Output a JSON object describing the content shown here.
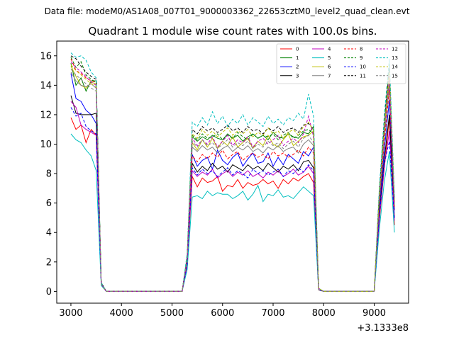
{
  "chart_data": {
    "type": "line",
    "suptitle": "Data file: modeM0/AS1A08_007T01_9000003362_22653cztM0_level2_quad_clean.evt",
    "title": "Quadrant 1 module wise count rates with 100.0s bins.",
    "x_offset_label": "+3.1333e8",
    "xlim": [
      2720,
      9680
    ],
    "ylim": [
      -0.8,
      17.0
    ],
    "x_ticks": [
      3000,
      4000,
      5000,
      6000,
      7000,
      8000,
      9000
    ],
    "y_ticks": [
      0,
      2,
      4,
      6,
      8,
      10,
      12,
      14,
      16
    ],
    "x_tick_labels": [
      "3000",
      "4000",
      "5000",
      "6000",
      "7000",
      "8000",
      "9000"
    ],
    "y_tick_labels": [
      "0",
      "2",
      "4",
      "6",
      "8",
      "10",
      "12",
      "14",
      "16"
    ],
    "legend_position": "top-right",
    "legend_columns": 4,
    "x": [
      3000,
      3100,
      3200,
      3300,
      3400,
      3500,
      3600,
      3700,
      3800,
      3900,
      4000,
      4100,
      4200,
      4300,
      4400,
      4500,
      4600,
      4700,
      4800,
      4900,
      5000,
      5100,
      5200,
      5300,
      5400,
      5500,
      5600,
      5700,
      5800,
      5900,
      6000,
      6100,
      6200,
      6300,
      6400,
      6500,
      6600,
      6700,
      6800,
      6900,
      7000,
      7100,
      7200,
      7300,
      7400,
      7500,
      7600,
      7700,
      7800,
      7900,
      8000,
      8100,
      8200,
      8300,
      8400,
      8500,
      8600,
      8700,
      8800,
      8900,
      9000,
      9100,
      9200,
      9300,
      9400
    ],
    "series": [
      {
        "name": "0",
        "color": "#ff0000",
        "dashed": false,
        "values": [
          11.8,
          11.0,
          11.3,
          10.1,
          11.0,
          10.6,
          0.5,
          0.0,
          0.0,
          0.0,
          0.0,
          0.0,
          0.0,
          0.0,
          0.0,
          0.0,
          0.0,
          0.0,
          0.0,
          0.0,
          0.0,
          0.0,
          0.0,
          1.7,
          7.8,
          7.1,
          7.7,
          7.4,
          7.5,
          7.8,
          6.8,
          7.2,
          7.1,
          7.6,
          7.0,
          7.4,
          7.2,
          7.3,
          7.6,
          7.3,
          7.5,
          7.0,
          7.6,
          7.3,
          7.7,
          7.5,
          7.8,
          8.0,
          7.4,
          0.1,
          0.0,
          0.0,
          0.0,
          0.0,
          0.0,
          0.0,
          0.0,
          0.0,
          0.0,
          0.0,
          0.0,
          4.8,
          8.4,
          11.8,
          4.5
        ]
      },
      {
        "name": "1",
        "color": "#008000",
        "dashed": false,
        "values": [
          15.5,
          14.0,
          14.5,
          13.6,
          14.3,
          14.3,
          0.5,
          0.0,
          0.0,
          0.0,
          0.0,
          0.0,
          0.0,
          0.0,
          0.0,
          0.0,
          0.0,
          0.0,
          0.0,
          0.0,
          0.0,
          0.0,
          0.0,
          2.3,
          10.5,
          10.2,
          10.5,
          10.3,
          10.6,
          10.4,
          10.3,
          10.7,
          10.4,
          10.6,
          10.2,
          10.5,
          10.7,
          10.4,
          10.6,
          10.3,
          10.8,
          10.5,
          10.4,
          10.7,
          10.5,
          10.4,
          10.8,
          10.7,
          11.2,
          0.2,
          0.0,
          0.0,
          0.0,
          0.0,
          0.0,
          0.0,
          0.0,
          0.0,
          0.0,
          0.0,
          0.0,
          6.5,
          11.0,
          14.3,
          6.0
        ]
      },
      {
        "name": "2",
        "color": "#0000ff",
        "dashed": false,
        "values": [
          14.8,
          13.1,
          12.9,
          12.3,
          12.0,
          11.4,
          0.5,
          0.0,
          0.0,
          0.0,
          0.0,
          0.0,
          0.0,
          0.0,
          0.0,
          0.0,
          0.0,
          0.0,
          0.0,
          0.0,
          0.0,
          0.0,
          0.0,
          2.0,
          9.3,
          8.5,
          8.9,
          9.1,
          8.3,
          9.6,
          8.9,
          8.6,
          9.1,
          9.4,
          8.5,
          9.0,
          9.4,
          8.7,
          8.8,
          9.4,
          8.5,
          9.1,
          8.6,
          9.3,
          9.0,
          8.7,
          9.5,
          9.2,
          9.8,
          0.1,
          0.0,
          0.0,
          0.0,
          0.0,
          0.0,
          0.0,
          0.0,
          0.0,
          0.0,
          0.0,
          0.0,
          5.8,
          9.6,
          13.0,
          5.5
        ]
      },
      {
        "name": "3",
        "color": "#000000",
        "dashed": false,
        "values": [
          13.3,
          12.1,
          12.0,
          12.0,
          12.0,
          12.1,
          0.5,
          0.0,
          0.0,
          0.0,
          0.0,
          0.0,
          0.0,
          0.0,
          0.0,
          0.0,
          0.0,
          0.0,
          0.0,
          0.0,
          0.0,
          0.0,
          0.0,
          1.9,
          8.7,
          8.1,
          8.5,
          8.2,
          8.7,
          8.3,
          8.5,
          8.1,
          8.6,
          8.4,
          8.2,
          8.6,
          8.3,
          8.5,
          8.2,
          8.7,
          8.4,
          8.1,
          8.5,
          8.3,
          8.6,
          8.2,
          8.8,
          8.9,
          8.4,
          0.1,
          0.0,
          0.0,
          0.0,
          0.0,
          0.0,
          0.0,
          0.0,
          0.0,
          0.0,
          0.0,
          0.0,
          5.3,
          9.0,
          12.0,
          5.0
        ]
      },
      {
        "name": "4",
        "color": "#bf00bf",
        "dashed": false,
        "values": [
          12.9,
          12.5,
          11.3,
          11.0,
          10.8,
          10.6,
          0.5,
          0.0,
          0.0,
          0.0,
          0.0,
          0.0,
          0.0,
          0.0,
          0.0,
          0.0,
          0.0,
          0.0,
          0.0,
          0.0,
          0.0,
          0.0,
          0.0,
          1.8,
          8.2,
          7.8,
          8.1,
          7.9,
          8.3,
          7.7,
          8.0,
          8.2,
          7.8,
          8.1,
          7.9,
          8.2,
          7.8,
          8.0,
          7.7,
          8.1,
          7.9,
          8.2,
          7.8,
          8.0,
          8.3,
          7.9,
          8.1,
          8.5,
          8.0,
          0.1,
          0.0,
          0.0,
          0.0,
          0.0,
          0.0,
          0.0,
          0.0,
          0.0,
          0.0,
          0.0,
          0.0,
          5.0,
          8.5,
          10.9,
          4.8
        ]
      },
      {
        "name": "5",
        "color": "#00bfbf",
        "dashed": false,
        "values": [
          10.7,
          10.3,
          10.1,
          9.6,
          9.2,
          8.2,
          0.4,
          0.0,
          0.0,
          0.0,
          0.0,
          0.0,
          0.0,
          0.0,
          0.0,
          0.0,
          0.0,
          0.0,
          0.0,
          0.0,
          0.0,
          0.0,
          0.0,
          1.5,
          6.4,
          6.5,
          6.3,
          6.8,
          6.5,
          6.7,
          6.6,
          6.6,
          6.3,
          6.5,
          6.8,
          6.2,
          6.6,
          7.2,
          6.1,
          6.6,
          6.5,
          6.9,
          6.4,
          6.5,
          6.3,
          6.7,
          7.1,
          6.8,
          6.5,
          0.1,
          0.0,
          0.0,
          0.0,
          0.0,
          0.0,
          0.0,
          0.0,
          0.0,
          0.0,
          0.0,
          0.0,
          4.2,
          7.5,
          9.5,
          4.0
        ]
      },
      {
        "name": "6",
        "color": "#bfbf00",
        "dashed": false,
        "values": [
          15.3,
          14.6,
          14.0,
          13.8,
          14.2,
          14.1,
          0.5,
          0.0,
          0.0,
          0.0,
          0.0,
          0.0,
          0.0,
          0.0,
          0.0,
          0.0,
          0.0,
          0.0,
          0.0,
          0.0,
          0.0,
          0.0,
          0.0,
          2.2,
          10.1,
          9.6,
          10.3,
          9.8,
          10.4,
          9.7,
          10.2,
          9.9,
          10.5,
          9.8,
          10.1,
          10.4,
          9.7,
          10.2,
          9.9,
          10.6,
          10.0,
          9.8,
          10.3,
          10.7,
          9.9,
          10.2,
          10.5,
          10.6,
          10.9,
          0.2,
          0.0,
          0.0,
          0.0,
          0.0,
          0.0,
          0.0,
          0.0,
          0.0,
          0.0,
          0.0,
          0.0,
          6.4,
          10.8,
          14.5,
          5.9
        ]
      },
      {
        "name": "7",
        "color": "#808080",
        "dashed": false,
        "values": [
          14.9,
          14.3,
          14.0,
          13.9,
          14.1,
          13.8,
          0.5,
          0.0,
          0.0,
          0.0,
          0.0,
          0.0,
          0.0,
          0.0,
          0.0,
          0.0,
          0.0,
          0.0,
          0.0,
          0.0,
          0.0,
          0.0,
          0.0,
          2.1,
          9.8,
          9.5,
          9.9,
          9.6,
          9.8,
          9.4,
          9.7,
          9.9,
          9.5,
          9.8,
          9.6,
          9.9,
          9.5,
          9.7,
          9.4,
          9.8,
          9.6,
          9.9,
          9.5,
          9.7,
          9.8,
          9.4,
          10.0,
          10.3,
          9.9,
          0.1,
          0.0,
          0.0,
          0.0,
          0.0,
          0.0,
          0.0,
          0.0,
          0.0,
          0.0,
          0.0,
          0.0,
          6.2,
          10.5,
          14.0,
          5.7
        ]
      },
      {
        "name": "8",
        "color": "#ff0000",
        "dashed": true,
        "values": [
          15.8,
          15.0,
          14.8,
          14.5,
          14.3,
          14.2,
          0.5,
          0.0,
          0.0,
          0.0,
          0.0,
          0.0,
          0.0,
          0.0,
          0.0,
          0.0,
          0.0,
          0.0,
          0.0,
          0.0,
          0.0,
          0.0,
          0.0,
          2.0,
          9.2,
          8.8,
          9.3,
          9.0,
          9.4,
          9.1,
          9.6,
          9.0,
          9.3,
          9.5,
          8.9,
          9.2,
          9.4,
          9.1,
          9.3,
          9.0,
          9.5,
          9.2,
          9.4,
          9.1,
          9.3,
          9.6,
          9.2,
          9.8,
          9.4,
          0.1,
          0.0,
          0.0,
          0.0,
          0.0,
          0.0,
          0.0,
          0.0,
          0.0,
          0.0,
          0.0,
          0.0,
          6.0,
          10.2,
          13.7,
          5.6
        ]
      },
      {
        "name": "9",
        "color": "#008000",
        "dashed": true,
        "values": [
          15.9,
          15.2,
          15.6,
          14.7,
          14.4,
          14.2,
          0.6,
          0.0,
          0.0,
          0.0,
          0.0,
          0.0,
          0.0,
          0.0,
          0.0,
          0.0,
          0.0,
          0.0,
          0.0,
          0.0,
          0.0,
          0.0,
          0.0,
          2.3,
          10.6,
          10.3,
          10.7,
          10.4,
          10.5,
          10.7,
          10.3,
          10.6,
          10.4,
          10.8,
          10.5,
          10.3,
          10.7,
          10.4,
          10.6,
          10.5,
          10.7,
          10.3,
          10.6,
          10.8,
          10.4,
          10.6,
          10.9,
          11.0,
          10.7,
          0.2,
          0.0,
          0.0,
          0.0,
          0.0,
          0.0,
          0.0,
          0.0,
          0.0,
          0.0,
          0.0,
          0.0,
          6.6,
          11.3,
          15.5,
          6.1
        ]
      },
      {
        "name": "10",
        "color": "#0000ff",
        "dashed": true,
        "values": [
          12.5,
          11.9,
          12.1,
          11.2,
          10.9,
          10.7,
          0.5,
          0.0,
          0.0,
          0.0,
          0.0,
          0.0,
          0.0,
          0.0,
          0.0,
          0.0,
          0.0,
          0.0,
          0.0,
          0.0,
          0.0,
          0.0,
          0.0,
          1.8,
          8.4,
          7.9,
          8.3,
          8.0,
          8.2,
          7.8,
          8.1,
          8.4,
          7.9,
          8.2,
          8.0,
          7.7,
          8.3,
          8.0,
          8.2,
          7.9,
          8.1,
          8.3,
          7.8,
          8.2,
          8.0,
          8.4,
          8.1,
          8.6,
          8.2,
          0.1,
          0.0,
          0.0,
          0.0,
          0.0,
          0.0,
          0.0,
          0.0,
          0.0,
          0.0,
          0.0,
          0.0,
          5.1,
          8.7,
          10.2,
          4.9
        ]
      },
      {
        "name": "11",
        "color": "#000000",
        "dashed": true,
        "values": [
          16.0,
          15.8,
          15.3,
          14.9,
          14.6,
          14.4,
          0.6,
          0.0,
          0.0,
          0.0,
          0.0,
          0.0,
          0.0,
          0.0,
          0.0,
          0.0,
          0.0,
          0.0,
          0.0,
          0.0,
          0.0,
          0.0,
          0.0,
          2.4,
          11.0,
          10.7,
          11.2,
          10.9,
          11.1,
          10.8,
          11.0,
          11.3,
          10.9,
          11.1,
          10.8,
          11.2,
          10.9,
          11.0,
          10.7,
          11.1,
          10.9,
          11.2,
          10.8,
          11.0,
          11.1,
          10.8,
          11.3,
          11.4,
          11.0,
          0.2,
          0.0,
          0.0,
          0.0,
          0.0,
          0.0,
          0.0,
          0.0,
          0.0,
          0.0,
          0.0,
          0.0,
          6.8,
          11.6,
          15.2,
          6.3
        ]
      },
      {
        "name": "12",
        "color": "#bf00bf",
        "dashed": true,
        "values": [
          15.6,
          15.2,
          14.9,
          14.6,
          14.2,
          14.0,
          0.5,
          0.0,
          0.0,
          0.0,
          0.0,
          0.0,
          0.0,
          0.0,
          0.0,
          0.0,
          0.0,
          0.0,
          0.0,
          0.0,
          0.0,
          0.0,
          0.0,
          2.2,
          10.4,
          9.9,
          10.3,
          10.0,
          10.5,
          9.8,
          10.2,
          10.6,
          9.9,
          10.3,
          10.1,
          10.5,
          9.8,
          10.2,
          10.4,
          10.0,
          10.3,
          10.6,
          9.9,
          10.2,
          10.4,
          10.1,
          10.7,
          11.9,
          10.5,
          0.2,
          0.0,
          0.0,
          0.0,
          0.0,
          0.0,
          0.0,
          0.0,
          0.0,
          0.0,
          0.0,
          0.0,
          6.3,
          10.9,
          14.6,
          5.9
        ]
      },
      {
        "name": "13",
        "color": "#00bfbf",
        "dashed": true,
        "values": [
          16.2,
          15.9,
          16.0,
          15.7,
          14.9,
          14.5,
          0.6,
          0.0,
          0.0,
          0.0,
          0.0,
          0.0,
          0.0,
          0.0,
          0.0,
          0.0,
          0.0,
          0.0,
          0.0,
          0.0,
          0.0,
          0.0,
          0.0,
          2.6,
          11.5,
          11.2,
          11.8,
          11.3,
          12.2,
          11.4,
          11.9,
          11.2,
          11.7,
          11.4,
          12.0,
          11.3,
          11.8,
          11.5,
          11.2,
          11.9,
          11.4,
          11.7,
          11.3,
          11.8,
          11.6,
          12.1,
          11.7,
          13.4,
          11.9,
          0.2,
          0.0,
          0.0,
          0.0,
          0.0,
          0.0,
          0.0,
          0.0,
          0.0,
          0.0,
          0.0,
          0.0,
          7.0,
          12.0,
          15.8,
          6.4
        ]
      },
      {
        "name": "14",
        "color": "#bfbf00",
        "dashed": true,
        "values": [
          15.4,
          15.0,
          14.7,
          14.4,
          14.1,
          13.9,
          0.5,
          0.0,
          0.0,
          0.0,
          0.0,
          0.0,
          0.0,
          0.0,
          0.0,
          0.0,
          0.0,
          0.0,
          0.0,
          0.0,
          0.0,
          0.0,
          0.0,
          2.2,
          10.7,
          10.4,
          11.0,
          10.6,
          10.9,
          10.5,
          10.8,
          11.1,
          10.6,
          10.9,
          10.7,
          11.0,
          10.5,
          10.8,
          10.6,
          11.1,
          10.7,
          10.9,
          10.4,
          10.8,
          11.0,
          10.6,
          11.2,
          11.5,
          10.9,
          0.2,
          0.0,
          0.0,
          0.0,
          0.0,
          0.0,
          0.0,
          0.0,
          0.0,
          0.0,
          0.0,
          0.0,
          6.5,
          11.2,
          14.9,
          6.1
        ]
      },
      {
        "name": "15",
        "color": "#808080",
        "dashed": true,
        "values": [
          15.1,
          14.7,
          14.4,
          14.1,
          13.8,
          13.6,
          0.5,
          0.0,
          0.0,
          0.0,
          0.0,
          0.0,
          0.0,
          0.0,
          0.0,
          0.0,
          0.0,
          0.0,
          0.0,
          0.0,
          0.0,
          0.0,
          0.0,
          2.1,
          10.2,
          9.8,
          10.3,
          9.9,
          10.1,
          9.7,
          10.0,
          10.3,
          9.8,
          10.1,
          9.9,
          10.2,
          9.7,
          10.0,
          9.8,
          10.2,
          9.9,
          10.1,
          9.7,
          10.0,
          10.2,
          9.8,
          10.4,
          10.6,
          10.1,
          0.1,
          0.0,
          0.0,
          0.0,
          0.0,
          0.0,
          0.0,
          0.0,
          0.0,
          0.0,
          0.0,
          0.0,
          6.2,
          10.6,
          14.2,
          5.8
        ]
      }
    ]
  }
}
